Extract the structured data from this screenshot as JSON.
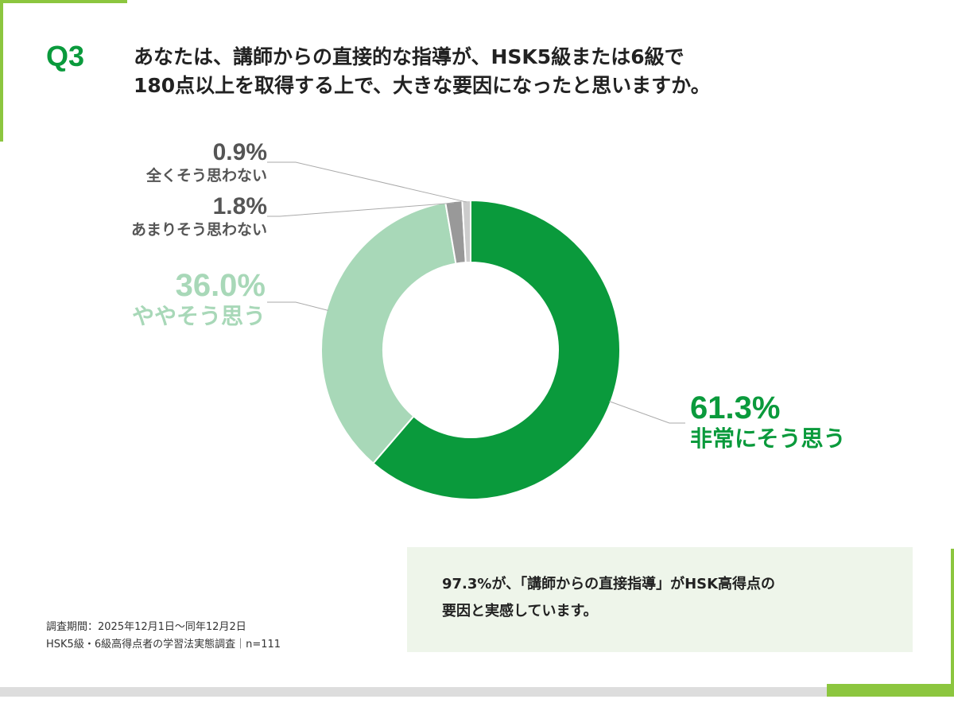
{
  "question": {
    "label": "Q3",
    "line1": "あなたは、講師からの直接的な指導が、HSK5級または6級で",
    "line2": "180点以上を取得する上で、大きな要因になったと思いますか。"
  },
  "chart_data": {
    "type": "pie",
    "subtype": "donut",
    "start": "12 o'clock, clockwise",
    "categories": [
      "非常にそう思う",
      "ややそう思う",
      "あまりそう思わない",
      "全くそう思わない"
    ],
    "values": [
      61.3,
      36.0,
      1.8,
      0.9
    ],
    "labels": [
      "61.3%",
      "36.0%",
      "1.8%",
      "0.9%"
    ],
    "colors": [
      "#0a9a3c",
      "#a8d8b8",
      "#999999",
      "#cccccc"
    ]
  },
  "survey": {
    "period": "調査期間：2025年12月1日〜同年12月2日",
    "name": "HSK5級・6級高得点者の学習法実態調査｜n=111"
  },
  "summary": {
    "line1": "97.3%が、「講師からの直接指導」がHSK高得点の",
    "line2": "要因と実感しています。"
  }
}
